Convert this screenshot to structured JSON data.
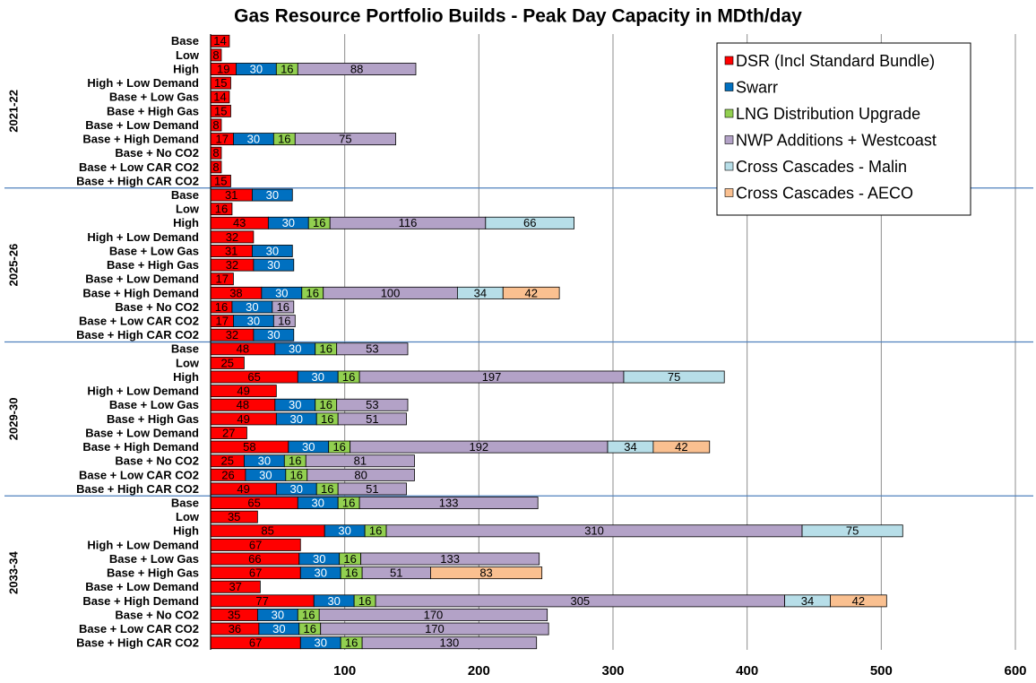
{
  "chart_data": {
    "type": "stacked-barh",
    "title": "Gas Resource Portfolio Builds - Peak Day Capacity in MDth/day",
    "group_labels": [
      "2021-22",
      "2025-26",
      "2029-30",
      "2033-34"
    ],
    "categories": [
      "Base",
      "Low",
      "High",
      "High + Low Demand",
      "Base + Low Gas",
      "Base + High Gas",
      "Base + Low Demand",
      "Base + High Demand",
      "Base + No CO2",
      "Base + Low CAR CO2",
      "Base + High CAR CO2",
      "Base",
      "Low",
      "High",
      "High + Low Demand",
      "Base + Low Gas",
      "Base + High Gas",
      "Base + Low Demand",
      "Base + High Demand",
      "Base + No CO2",
      "Base + Low CAR CO2",
      "Base + High CAR CO2",
      "Base",
      "Low",
      "High",
      "High + Low Demand",
      "Base + Low Gas",
      "Base + High Gas",
      "Base + Low Demand",
      "Base + High Demand",
      "Base + No CO2",
      "Base + Low CAR CO2",
      "Base + High CAR CO2",
      "Base",
      "Low",
      "High",
      "High + Low Demand",
      "Base + Low Gas",
      "Base + High Gas",
      "Base + Low Demand",
      "Base + High Demand",
      "Base + No CO2",
      "Base + Low CAR CO2",
      "Base + High CAR CO2"
    ],
    "series": [
      {
        "name": "DSR (Incl Standard Bundle)",
        "color": "#ff0000",
        "label_color": "#000000",
        "values": [
          14,
          8,
          19,
          15,
          14,
          15,
          8,
          17,
          8,
          8,
          15,
          31,
          16,
          43,
          32,
          31,
          32,
          17,
          38,
          16,
          17,
          32,
          48,
          25,
          65,
          49,
          48,
          49,
          27,
          58,
          25,
          26,
          49,
          65,
          35,
          85,
          67,
          66,
          67,
          37,
          77,
          35,
          36,
          67
        ]
      },
      {
        "name": "Swarr",
        "color": "#0070c0",
        "label_color": "#ffffff",
        "values": [
          null,
          null,
          30,
          null,
          null,
          null,
          null,
          30,
          null,
          null,
          null,
          30,
          null,
          30,
          null,
          30,
          30,
          null,
          30,
          30,
          30,
          30,
          30,
          null,
          30,
          null,
          30,
          30,
          null,
          30,
          30,
          30,
          30,
          30,
          null,
          30,
          null,
          30,
          30,
          null,
          30,
          30,
          30,
          30
        ]
      },
      {
        "name": "LNG Distribution Upgrade",
        "color": "#92d050",
        "label_color": "#000000",
        "values": [
          null,
          null,
          16,
          null,
          null,
          null,
          null,
          16,
          null,
          null,
          null,
          null,
          null,
          16,
          null,
          null,
          null,
          null,
          16,
          null,
          null,
          null,
          16,
          null,
          16,
          null,
          16,
          16,
          null,
          16,
          16,
          16,
          16,
          16,
          null,
          16,
          null,
          16,
          16,
          null,
          16,
          16,
          16,
          16
        ]
      },
      {
        "name": "NWP Additions + Westcoast",
        "color": "#b3a2c7",
        "label_color": "#000000",
        "values": [
          null,
          null,
          88,
          null,
          null,
          null,
          null,
          75,
          null,
          null,
          null,
          null,
          null,
          116,
          null,
          null,
          null,
          null,
          100,
          16,
          16,
          null,
          53,
          null,
          197,
          null,
          53,
          51,
          null,
          192,
          81,
          80,
          51,
          133,
          null,
          310,
          null,
          133,
          51,
          null,
          305,
          170,
          170,
          130
        ]
      },
      {
        "name": "Cross Cascades - Malin",
        "color": "#b7dee8",
        "label_color": "#000000",
        "values": [
          null,
          null,
          null,
          null,
          null,
          null,
          null,
          null,
          null,
          null,
          null,
          null,
          null,
          66,
          null,
          null,
          null,
          null,
          34,
          null,
          null,
          null,
          null,
          null,
          75,
          null,
          null,
          null,
          null,
          34,
          null,
          null,
          null,
          null,
          null,
          75,
          null,
          null,
          null,
          null,
          34,
          null,
          null,
          null
        ]
      },
      {
        "name": "Cross Cascades - AECO",
        "color": "#fac090",
        "label_color": "#000000",
        "values": [
          null,
          null,
          null,
          null,
          null,
          null,
          null,
          null,
          null,
          null,
          null,
          null,
          null,
          null,
          null,
          null,
          null,
          null,
          42,
          null,
          null,
          null,
          null,
          null,
          null,
          null,
          null,
          null,
          null,
          42,
          null,
          null,
          null,
          null,
          null,
          null,
          null,
          null,
          83,
          null,
          42,
          null,
          null,
          null
        ]
      }
    ],
    "xlim": [
      0,
      600
    ],
    "xticks": [
      100,
      200,
      300,
      400,
      500,
      600
    ],
    "grid": true,
    "legend": "upper right"
  }
}
